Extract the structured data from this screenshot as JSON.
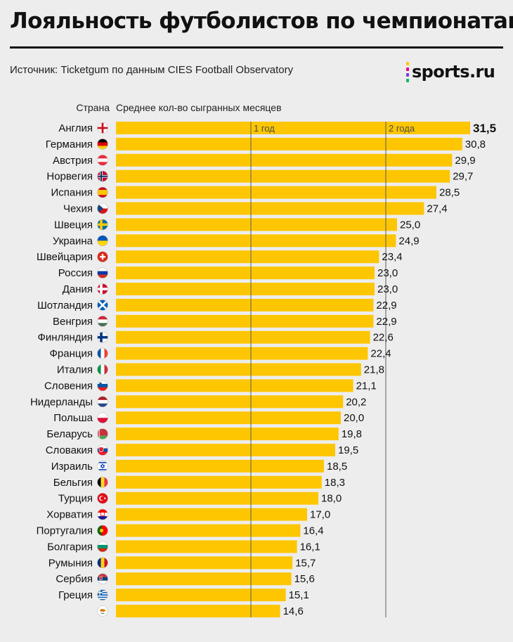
{
  "header": {
    "title": "Лояльность футболистов по чемпионатам",
    "source": "Источник: Ticketgum по данным CIES Football Observatory",
    "logo_text": "sports.ru",
    "col_country": "Страна",
    "col_metric": "Среднее кол-во сыгранных месяцев"
  },
  "colors": {
    "bar": "#fdc600",
    "background": "#ededed",
    "text": "#111111",
    "grid": "#5a5a5a",
    "logo_dots": [
      "#fdc600",
      "#e8007e",
      "#7a3ee0",
      "#12b76a"
    ]
  },
  "chart_data": {
    "type": "bar",
    "orientation": "horizontal",
    "xlabel": "Среднее кол-во сыгранных месяцев",
    "ylabel": "Страна",
    "reference_lines": [
      {
        "value": 12,
        "label": "1 год"
      },
      {
        "value": 24,
        "label": "2 года"
      }
    ],
    "categories": [
      "Англия",
      "Германия",
      "Австрия",
      "Норвегия",
      "Испания",
      "Чехия",
      "Швеция",
      "Украина",
      "Швейцария",
      "Россия",
      "Дания",
      "Шотландия",
      "Венгрия",
      "Финляндия",
      "Франция",
      "Италия",
      "Словения",
      "Нидерланды",
      "Польша",
      "Беларусь",
      "Словакия",
      "Израиль",
      "Бельгия",
      "Турция",
      "Хорватия",
      "Португалия",
      "Болгария",
      "Румыния",
      "Сербия",
      "Греция",
      ""
    ],
    "values": [
      31.5,
      30.8,
      29.9,
      29.7,
      28.5,
      27.4,
      25.0,
      24.9,
      23.4,
      23.0,
      23.0,
      22.9,
      22.9,
      22.6,
      22.4,
      21.8,
      21.1,
      20.2,
      20.0,
      19.8,
      19.5,
      18.5,
      18.3,
      18.0,
      17.0,
      16.4,
      16.1,
      15.7,
      15.6,
      15.1,
      14.6
    ],
    "value_labels": [
      "31,5",
      "30,8",
      "29,9",
      "29,7",
      "28,5",
      "27,4",
      "25,0",
      "24,9",
      "23,4",
      "23,0",
      "23,0",
      "22,9",
      "22,9",
      "22,6",
      "22,4",
      "21,8",
      "21,1",
      "20,2",
      "20,0",
      "19,8",
      "19,5",
      "18,5",
      "18,3",
      "18,0",
      "17,0",
      "16,4",
      "16,1",
      "15,7",
      "15,6",
      "15,1",
      "14,6"
    ],
    "flag_icons": [
      "england-flag-icon",
      "germany-flag-icon",
      "austria-flag-icon",
      "norway-flag-icon",
      "spain-flag-icon",
      "czechia-flag-icon",
      "sweden-flag-icon",
      "ukraine-flag-icon",
      "switzerland-flag-icon",
      "russia-flag-icon",
      "denmark-flag-icon",
      "scotland-flag-icon",
      "hungary-flag-icon",
      "finland-flag-icon",
      "france-flag-icon",
      "italy-flag-icon",
      "slovenia-flag-icon",
      "netherlands-flag-icon",
      "poland-flag-icon",
      "belarus-flag-icon",
      "slovakia-flag-icon",
      "israel-flag-icon",
      "belgium-flag-icon",
      "turkey-flag-icon",
      "croatia-flag-icon",
      "portugal-flag-icon",
      "bulgaria-flag-icon",
      "romania-flag-icon",
      "serbia-flag-icon",
      "greece-flag-icon",
      "cyprus-flag-icon"
    ]
  }
}
